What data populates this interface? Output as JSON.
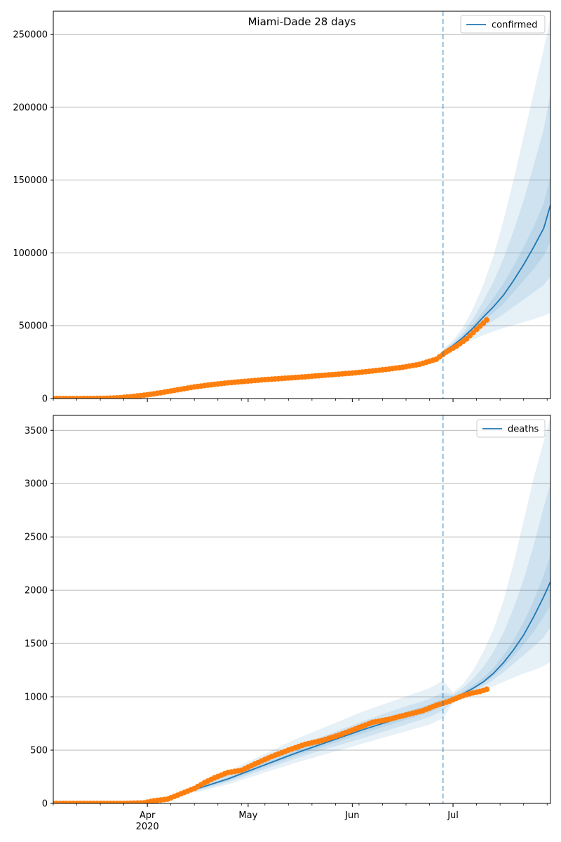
{
  "chart_data": [
    {
      "type": "line",
      "title": "Miami-Dade 28 days",
      "xlabel": "",
      "ylabel": "",
      "x_axis": "date",
      "xlim": [
        "2020-03-04",
        "2020-07-30"
      ],
      "ylim": [
        0,
        266000
      ],
      "yticks": [
        0,
        50000,
        100000,
        150000,
        200000,
        250000
      ],
      "ytick_labels": [
        "0",
        "50000",
        "100000",
        "150000",
        "200000",
        "250000"
      ],
      "xtick_labels": [
        {
          "date": "2020-04-01",
          "label": "Apr",
          "sub": "2020"
        },
        {
          "date": "2020-05-01",
          "label": "May",
          "sub": ""
        },
        {
          "date": "2020-06-01",
          "label": "Jun",
          "sub": ""
        },
        {
          "date": "2020-07-01",
          "label": "Jul",
          "sub": ""
        }
      ],
      "grid": "horizontal",
      "legend": {
        "placement": "top-right",
        "entries": [
          "confirmed"
        ]
      },
      "forecast_start": "2020-06-28",
      "series": [
        {
          "name": "confirmed",
          "role": "forecast median",
          "color": "#1f77b4",
          "x": [
            "2020-06-28",
            "2020-07-01",
            "2020-07-04",
            "2020-07-07",
            "2020-07-10",
            "2020-07-13",
            "2020-07-16",
            "2020-07-19",
            "2020-07-22",
            "2020-07-25",
            "2020-07-28",
            "2020-07-30"
          ],
          "y": [
            32000,
            36500,
            42000,
            48500,
            56000,
            63000,
            71000,
            81000,
            92000,
            104000,
            117000,
            133000
          ],
          "bands": [
            {
              "lower": [
                30000,
                34000,
                37500,
                40500,
                43500,
                46000,
                48500,
                50500,
                52500,
                54500,
                57000,
                59000
              ],
              "upper": [
                34000,
                40000,
                49000,
                62000,
                78000,
                98000,
                122000,
                150000,
                180000,
                210000,
                240000,
                262000
              ]
            },
            {
              "lower": [
                31000,
                35000,
                39500,
                44000,
                49000,
                53500,
                58000,
                63000,
                68000,
                73000,
                78000,
                84000
              ],
              "upper": [
                33000,
                38500,
                45500,
                55000,
                67000,
                80000,
                96000,
                115000,
                136000,
                160000,
                185000,
                210000
              ]
            },
            {
              "lower": [
                31500,
                35800,
                41000,
                46500,
                53000,
                59000,
                65000,
                73000,
                81000,
                89000,
                98000,
                108000
              ],
              "upper": [
                32500,
                37300,
                43500,
                51000,
                60000,
                69000,
                79000,
                91000,
                104000,
                118000,
                134000,
                153000
              ]
            }
          ]
        },
        {
          "name": "",
          "role": "observed",
          "color": "#ff7f0e",
          "x": [
            "2020-03-04",
            "2020-03-10",
            "2020-03-16",
            "2020-03-20",
            "2020-03-24",
            "2020-03-28",
            "2020-04-01",
            "2020-04-05",
            "2020-04-10",
            "2020-04-15",
            "2020-04-20",
            "2020-04-25",
            "2020-05-01",
            "2020-05-06",
            "2020-05-11",
            "2020-05-16",
            "2020-05-21",
            "2020-05-26",
            "2020-06-01",
            "2020-06-06",
            "2020-06-11",
            "2020-06-16",
            "2020-06-21",
            "2020-06-26",
            "2020-06-29",
            "2020-07-02",
            "2020-07-05",
            "2020-07-08",
            "2020-07-11"
          ],
          "y": [
            0,
            0,
            50,
            200,
            600,
            1500,
            2600,
            4000,
            6000,
            8000,
            9500,
            10800,
            12000,
            13000,
            13800,
            14600,
            15500,
            16400,
            17500,
            18700,
            20000,
            21500,
            23500,
            27000,
            32000,
            36000,
            41000,
            47500,
            54000
          ]
        }
      ]
    },
    {
      "type": "line",
      "title": "",
      "xlabel": "",
      "ylabel": "",
      "x_axis": "date",
      "xlim": [
        "2020-03-04",
        "2020-07-30"
      ],
      "ylim": [
        0,
        3640
      ],
      "yticks": [
        0,
        500,
        1000,
        1500,
        2000,
        2500,
        3000,
        3500
      ],
      "ytick_labels": [
        "0",
        "500",
        "1000",
        "1500",
        "2000",
        "2500",
        "3000",
        "3500"
      ],
      "xtick_labels": [
        {
          "date": "2020-04-01",
          "label": "Apr",
          "sub": "2020"
        },
        {
          "date": "2020-05-01",
          "label": "May",
          "sub": ""
        },
        {
          "date": "2020-06-01",
          "label": "Jun",
          "sub": ""
        },
        {
          "date": "2020-07-01",
          "label": "Jul",
          "sub": ""
        }
      ],
      "grid": "horizontal",
      "legend": {
        "placement": "top-right",
        "entries": [
          "deaths"
        ]
      },
      "forecast_start": "2020-06-28",
      "series": [
        {
          "name": "deaths",
          "role": "model fit and forecast median",
          "color": "#1f77b4",
          "x": [
            "2020-04-15",
            "2020-04-25",
            "2020-05-05",
            "2020-05-15",
            "2020-05-25",
            "2020-06-04",
            "2020-06-14",
            "2020-06-24",
            "2020-06-28",
            "2020-07-01",
            "2020-07-04",
            "2020-07-07",
            "2020-07-10",
            "2020-07-13",
            "2020-07-16",
            "2020-07-19",
            "2020-07-22",
            "2020-07-25",
            "2020-07-28",
            "2020-07-30"
          ],
          "y": [
            130,
            230,
            350,
            470,
            580,
            690,
            790,
            890,
            950,
            985,
            1030,
            1080,
            1140,
            1220,
            1320,
            1440,
            1580,
            1750,
            1940,
            2080
          ],
          "bands": [
            {
              "lower": [
                100,
                180,
                280,
                380,
                470,
                560,
                650,
                740,
                800,
                940,
                985,
                1025,
                1060,
                1100,
                1140,
                1180,
                1220,
                1250,
                1290,
                1330
              ],
              "upper": [
                165,
                300,
                450,
                600,
                730,
                860,
                970,
                1080,
                1150,
                1040,
                1120,
                1250,
                1420,
                1630,
                1900,
                2250,
                2650,
                3050,
                3400,
                3620
              ]
            },
            {
              "lower": [
                110,
                200,
                310,
                420,
                520,
                610,
                710,
                810,
                870,
                955,
                1005,
                1050,
                1100,
                1160,
                1230,
                1310,
                1390,
                1470,
                1560,
                1650
              ],
              "upper": [
                150,
                270,
                400,
                530,
                650,
                770,
                880,
                980,
                1040,
                1020,
                1085,
                1170,
                1280,
                1420,
                1600,
                1830,
                2100,
                2420,
                2780,
                3000
              ]
            },
            {
              "lower": [
                120,
                215,
                330,
                445,
                550,
                655,
                755,
                855,
                915,
                970,
                1018,
                1068,
                1125,
                1195,
                1280,
                1380,
                1490,
                1610,
                1750,
                1860
              ],
              "upper": [
                140,
                245,
                370,
                495,
                610,
                725,
                830,
                930,
                985,
                1000,
                1050,
                1110,
                1180,
                1270,
                1390,
                1530,
                1700,
                1900,
                2140,
                2330
              ]
            }
          ]
        },
        {
          "name": "",
          "role": "observed",
          "color": "#ff7f0e",
          "x": [
            "2020-03-04",
            "2020-03-15",
            "2020-03-25",
            "2020-03-31",
            "2020-04-03",
            "2020-04-07",
            "2020-04-11",
            "2020-04-15",
            "2020-04-18",
            "2020-04-21",
            "2020-04-25",
            "2020-04-29",
            "2020-05-03",
            "2020-05-08",
            "2020-05-13",
            "2020-05-18",
            "2020-05-23",
            "2020-05-28",
            "2020-06-02",
            "2020-06-07",
            "2020-06-12",
            "2020-06-17",
            "2020-06-22",
            "2020-06-26",
            "2020-06-30",
            "2020-07-03",
            "2020-07-06",
            "2020-07-09",
            "2020-07-11"
          ],
          "y": [
            0,
            0,
            0,
            5,
            25,
            40,
            90,
            140,
            195,
            240,
            290,
            310,
            370,
            440,
            500,
            555,
            590,
            640,
            700,
            760,
            790,
            830,
            870,
            920,
            960,
            1000,
            1030,
            1050,
            1070
          ]
        }
      ]
    }
  ]
}
